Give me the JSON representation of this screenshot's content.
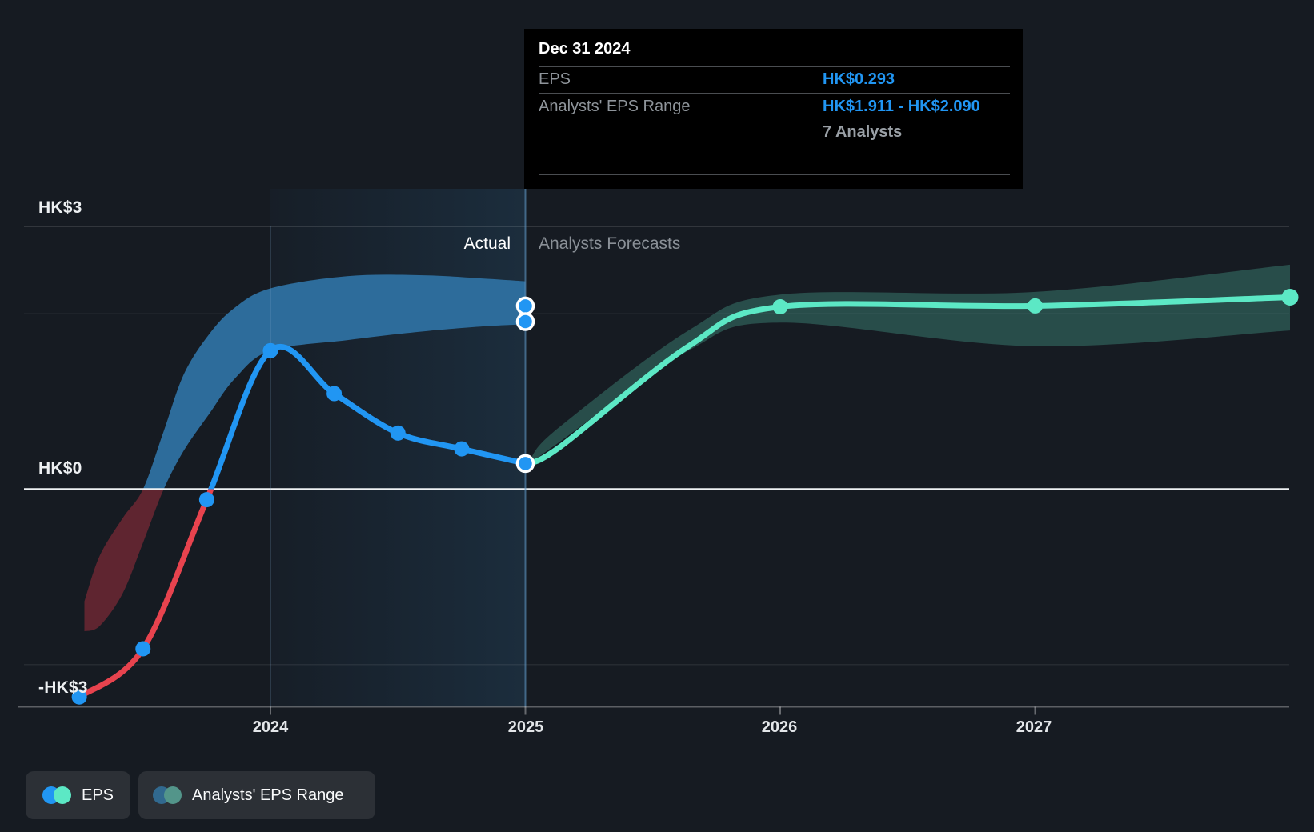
{
  "colors": {
    "background": "#161b22",
    "accent_blue": "#2196f3",
    "accent_teal": "#5ce8c5",
    "negative_red": "#e8434e",
    "band_blue": "#2d6c9b",
    "band_red": "#5f2530",
    "band_teal": "rgba(93,220,189,0.26)",
    "tooltip_bg": "#000000",
    "zero_line": "#eef1f3"
  },
  "tooltip": {
    "date": "Dec 31 2024",
    "rows": [
      {
        "label": "EPS",
        "value": "HK$0.293"
      },
      {
        "label": "Analysts' EPS Range",
        "value": "HK$1.911 - HK$2.090"
      }
    ],
    "note": "7 Analysts"
  },
  "phase": {
    "actual": "Actual",
    "forecast": "Analysts Forecasts"
  },
  "axes": {
    "y_labels": [
      {
        "text": "HK$3"
      },
      {
        "text": "HK$0"
      },
      {
        "text": "-HK$3"
      }
    ],
    "x_labels": [
      "2024",
      "2025",
      "2026",
      "2027"
    ]
  },
  "legend": {
    "items": [
      {
        "label": "EPS",
        "colors": [
          "#2196f3",
          "#5ce8c5"
        ]
      },
      {
        "label": "Analysts' EPS Range",
        "colors": [
          "#31698f",
          "#53958a"
        ]
      }
    ]
  },
  "chart_data": {
    "type": "line",
    "title": "EPS: actual vs analysts forecast",
    "currency": "HK$",
    "x_axis": {
      "tick_labels": [
        "2024",
        "2025",
        "2026",
        "2027"
      ],
      "tick_positions": [
        2024,
        2025,
        2026,
        2027
      ],
      "range": [
        2023.03,
        2028.0
      ]
    },
    "y_axis": {
      "tick_labels": [
        "HK$3",
        "HK$0",
        "-HK$3"
      ],
      "tick_values": [
        3,
        0,
        -3
      ],
      "faint_gridlines": [
        2,
        -2
      ],
      "top_gridline": 3
    },
    "divider_x": 2025.0,
    "highlight_span": [
      2024.0,
      2025.0
    ],
    "series": [
      {
        "name": "EPS",
        "kind": "actual",
        "color": "#2196f3",
        "negative_color": "#e8434e",
        "x": [
          2023.25,
          2023.5,
          2023.75,
          2024.0,
          2024.25,
          2024.5,
          2024.75,
          2025.0
        ],
        "values": [
          -2.37,
          -1.82,
          -0.12,
          1.58,
          1.09,
          0.64,
          0.46,
          0.293
        ],
        "dot_indices": [
          0,
          1,
          2,
          3,
          4,
          5,
          6
        ],
        "ringed_indices": [
          7
        ]
      },
      {
        "name": "EPS forecast",
        "kind": "forecast",
        "color": "#5ce8c5",
        "x": [
          2025.0,
          2025.13,
          2025.64,
          2026.0,
          2027.0,
          2028.0
        ],
        "values": [
          0.293,
          0.47,
          1.63,
          2.08,
          2.09,
          2.19
        ],
        "dot_indices": [
          3,
          4
        ],
        "end_dot_index": 5
      }
    ],
    "bands": [
      {
        "name": "analysts-range-actual",
        "positive_color": "#2d6c9b",
        "negative_color": "#5f2530",
        "x": [
          2023.27,
          2023.33,
          2023.42,
          2023.5,
          2023.58,
          2023.66,
          2023.76,
          2023.86,
          2024.0,
          2024.3,
          2024.6,
          2024.85,
          2025.0
        ],
        "top": [
          -1.28,
          -0.76,
          -0.33,
          0.0,
          0.65,
          1.31,
          1.77,
          2.07,
          2.29,
          2.43,
          2.44,
          2.4,
          2.37
        ],
        "bottom": [
          -1.62,
          -1.56,
          -1.19,
          -0.61,
          -0.01,
          0.44,
          0.86,
          1.26,
          1.58,
          1.7,
          1.8,
          1.86,
          1.88
        ]
      },
      {
        "name": "analysts-eps-range-forecast",
        "color": "rgba(93,220,189,0.26)",
        "x": [
          2025.02,
          2025.13,
          2025.64,
          2026.0,
          2027.0,
          2028.0
        ],
        "top": [
          0.35,
          0.7,
          1.81,
          2.22,
          2.25,
          2.56
        ],
        "bottom": [
          0.3,
          0.53,
          1.58,
          1.9,
          1.63,
          1.81
        ]
      }
    ],
    "selected_point": {
      "x": 2025.0,
      "date": "Dec 31 2024",
      "eps": 0.293,
      "range_low": 1.911,
      "range_high": 2.09,
      "analysts": 7
    }
  }
}
